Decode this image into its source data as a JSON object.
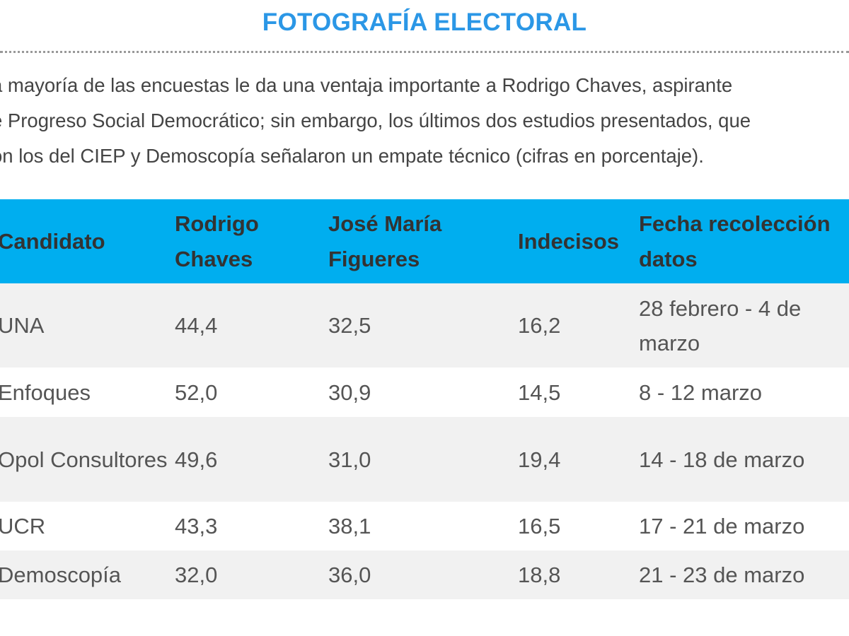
{
  "header": {
    "title": "FOTOGRAFÍA ELECTORAL"
  },
  "intro": {
    "lines": [
      "a mayoría de las encuestas le da una ventaja importante a Rodrigo Chaves, aspirante",
      "e Progreso Social Democrático; sin embargo, los últimos dos estudios presentados, que",
      "on los del CIEP y Demoscopía señalaron un empate técnico (cifras en porcentaje)."
    ]
  },
  "table": {
    "headers": [
      "Candidato",
      "Rodrigo Chaves",
      "José María Figueres",
      "Indecisos",
      "Fecha recolección datos"
    ],
    "rows": [
      [
        "UNA",
        "44,4",
        "32,5",
        "16,2",
        "28 febrero - 4 de marzo"
      ],
      [
        "Enfoques",
        "52,0",
        "30,9",
        "14,5",
        "8 - 12 marzo"
      ],
      [
        "Opol Consultores",
        "49,6",
        "31,0",
        "19,4",
        "14 - 18 de marzo"
      ],
      [
        "UCR",
        "43,3",
        "38,1",
        "16,5",
        "17 - 21 de marzo"
      ],
      [
        "Demoscopía",
        "32,0",
        "36,0",
        "18,8",
        "21 - 23 de marzo"
      ]
    ]
  },
  "colors": {
    "title": "#2b97e6",
    "header_bg": "#00aeef",
    "row_odd": "#f1f1f1",
    "row_even": "#ffffff"
  }
}
